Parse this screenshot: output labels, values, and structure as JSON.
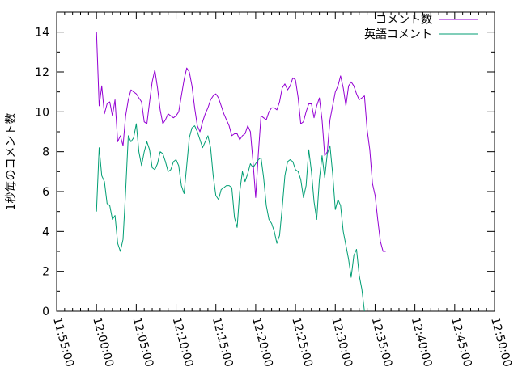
{
  "chart_data": {
    "type": "line",
    "title": "",
    "ylabel": "1秒毎のコメント数",
    "xlabel": "",
    "ylim": [
      0,
      15
    ],
    "yticks": [
      "0",
      "2",
      "4",
      "6",
      "8",
      "10",
      "12",
      "14"
    ],
    "xticks": [
      "11:55:00",
      "12:00:00",
      "12:05:00",
      "12:10:00",
      "12:15:00",
      "12:20:00",
      "12:25:00",
      "12:30:00",
      "12:35:00",
      "12:40:00",
      "12:45:00",
      "12:50:00"
    ],
    "xlim": [
      "11:55:00",
      "12:50:00"
    ],
    "legend_position": "top-right",
    "grid": false,
    "series": [
      {
        "name": "コメント数",
        "color": "#9400d3",
        "points": [
          [
            "12:00:00",
            14.0
          ],
          [
            "12:00:20",
            10.3
          ],
          [
            "12:00:40",
            11.3
          ],
          [
            "12:01:00",
            9.9
          ],
          [
            "12:01:20",
            10.4
          ],
          [
            "12:01:40",
            10.5
          ],
          [
            "12:02:00",
            9.8
          ],
          [
            "12:02:20",
            10.6
          ],
          [
            "12:02:40",
            8.5
          ],
          [
            "12:03:00",
            8.8
          ],
          [
            "12:03:20",
            8.3
          ],
          [
            "12:03:40",
            9.8
          ],
          [
            "12:04:00",
            10.6
          ],
          [
            "12:04:20",
            11.1
          ],
          [
            "12:04:40",
            11.0
          ],
          [
            "12:05:00",
            10.9
          ],
          [
            "12:05:20",
            10.7
          ],
          [
            "12:05:40",
            10.5
          ],
          [
            "12:06:00",
            9.5
          ],
          [
            "12:06:20",
            9.4
          ],
          [
            "12:06:40",
            10.5
          ],
          [
            "12:07:00",
            11.5
          ],
          [
            "12:07:20",
            12.1
          ],
          [
            "12:07:40",
            11.2
          ],
          [
            "12:08:00",
            10.1
          ],
          [
            "12:08:20",
            9.4
          ],
          [
            "12:08:40",
            9.6
          ],
          [
            "12:09:00",
            9.9
          ],
          [
            "12:09:20",
            9.8
          ],
          [
            "12:09:40",
            9.7
          ],
          [
            "12:10:00",
            9.8
          ],
          [
            "12:10:20",
            10.0
          ],
          [
            "12:10:40",
            10.8
          ],
          [
            "12:11:00",
            11.6
          ],
          [
            "12:11:20",
            12.2
          ],
          [
            "12:11:40",
            12.0
          ],
          [
            "12:12:00",
            11.3
          ],
          [
            "12:12:20",
            10.2
          ],
          [
            "12:12:40",
            9.3
          ],
          [
            "12:13:00",
            9.0
          ],
          [
            "12:13:20",
            9.5
          ],
          [
            "12:13:40",
            9.9
          ],
          [
            "12:14:00",
            10.2
          ],
          [
            "12:14:20",
            10.6
          ],
          [
            "12:14:40",
            10.8
          ],
          [
            "12:15:00",
            10.9
          ],
          [
            "12:15:20",
            10.7
          ],
          [
            "12:15:40",
            10.3
          ],
          [
            "12:16:00",
            9.9
          ],
          [
            "12:16:20",
            9.6
          ],
          [
            "12:16:40",
            9.3
          ],
          [
            "12:17:00",
            8.8
          ],
          [
            "12:17:20",
            8.9
          ],
          [
            "12:17:40",
            8.9
          ],
          [
            "12:18:00",
            8.6
          ],
          [
            "12:18:20",
            8.8
          ],
          [
            "12:18:40",
            8.9
          ],
          [
            "12:19:00",
            9.3
          ],
          [
            "12:19:20",
            9.0
          ],
          [
            "12:19:40",
            7.5
          ],
          [
            "12:20:00",
            5.7
          ],
          [
            "12:20:20",
            7.9
          ],
          [
            "12:20:40",
            9.8
          ],
          [
            "12:21:00",
            9.7
          ],
          [
            "12:21:20",
            9.6
          ],
          [
            "12:21:40",
            10.0
          ],
          [
            "12:22:00",
            10.2
          ],
          [
            "12:22:20",
            10.2
          ],
          [
            "12:22:40",
            10.1
          ],
          [
            "12:23:00",
            10.5
          ],
          [
            "12:23:20",
            11.2
          ],
          [
            "12:23:40",
            11.4
          ],
          [
            "12:24:00",
            11.1
          ],
          [
            "12:24:20",
            11.3
          ],
          [
            "12:24:40",
            11.7
          ],
          [
            "12:25:00",
            11.6
          ],
          [
            "12:25:20",
            10.7
          ],
          [
            "12:25:40",
            9.4
          ],
          [
            "12:26:00",
            9.5
          ],
          [
            "12:26:20",
            10.0
          ],
          [
            "12:26:40",
            10.4
          ],
          [
            "12:27:00",
            10.4
          ],
          [
            "12:27:20",
            9.7
          ],
          [
            "12:27:40",
            10.3
          ],
          [
            "12:28:00",
            10.7
          ],
          [
            "12:28:20",
            9.6
          ],
          [
            "12:28:40",
            7.8
          ],
          [
            "12:29:00",
            8.0
          ],
          [
            "12:29:20",
            9.6
          ],
          [
            "12:29:40",
            10.3
          ],
          [
            "12:30:00",
            11.0
          ],
          [
            "12:30:20",
            11.3
          ],
          [
            "12:30:40",
            11.8
          ],
          [
            "12:31:00",
            11.2
          ],
          [
            "12:31:20",
            10.3
          ],
          [
            "12:31:40",
            11.3
          ],
          [
            "12:32:00",
            11.5
          ],
          [
            "12:32:20",
            11.3
          ],
          [
            "12:32:40",
            10.9
          ],
          [
            "12:33:00",
            10.6
          ],
          [
            "12:33:20",
            10.7
          ],
          [
            "12:33:40",
            10.8
          ],
          [
            "12:34:00",
            9.1
          ],
          [
            "12:34:20",
            8.1
          ],
          [
            "12:34:40",
            6.4
          ],
          [
            "12:35:00",
            5.8
          ],
          [
            "12:35:20",
            4.6
          ],
          [
            "12:35:40",
            3.5
          ],
          [
            "12:36:00",
            3.0
          ],
          [
            "12:36:20",
            3.0
          ]
        ]
      },
      {
        "name": "英語コメント",
        "color": "#009e73",
        "points": [
          [
            "12:00:00",
            5.0
          ],
          [
            "12:00:20",
            8.2
          ],
          [
            "12:00:40",
            6.8
          ],
          [
            "12:01:00",
            6.5
          ],
          [
            "12:01:20",
            5.4
          ],
          [
            "12:01:40",
            5.3
          ],
          [
            "12:02:00",
            4.6
          ],
          [
            "12:02:20",
            4.8
          ],
          [
            "12:02:40",
            3.4
          ],
          [
            "12:03:00",
            3.0
          ],
          [
            "12:03:20",
            3.6
          ],
          [
            "12:03:40",
            6.0
          ],
          [
            "12:04:00",
            8.8
          ],
          [
            "12:04:20",
            8.5
          ],
          [
            "12:04:40",
            8.7
          ],
          [
            "12:05:00",
            9.4
          ],
          [
            "12:05:20",
            8.0
          ],
          [
            "12:05:40",
            7.3
          ],
          [
            "12:06:00",
            8.0
          ],
          [
            "12:06:20",
            8.5
          ],
          [
            "12:06:40",
            8.1
          ],
          [
            "12:07:00",
            7.2
          ],
          [
            "12:07:20",
            7.1
          ],
          [
            "12:07:40",
            7.4
          ],
          [
            "12:08:00",
            8.0
          ],
          [
            "12:08:20",
            7.9
          ],
          [
            "12:08:40",
            7.5
          ],
          [
            "12:09:00",
            7.0
          ],
          [
            "12:09:20",
            7.1
          ],
          [
            "12:09:40",
            7.5
          ],
          [
            "12:10:00",
            7.6
          ],
          [
            "12:10:20",
            7.3
          ],
          [
            "12:10:40",
            6.3
          ],
          [
            "12:11:00",
            5.9
          ],
          [
            "12:11:20",
            7.3
          ],
          [
            "12:11:40",
            8.7
          ],
          [
            "12:12:00",
            9.2
          ],
          [
            "12:12:20",
            9.3
          ],
          [
            "12:12:40",
            9.0
          ],
          [
            "12:13:00",
            8.6
          ],
          [
            "12:13:20",
            8.2
          ],
          [
            "12:13:40",
            8.5
          ],
          [
            "12:14:00",
            8.8
          ],
          [
            "12:14:20",
            8.2
          ],
          [
            "12:14:40",
            6.8
          ],
          [
            "12:15:00",
            5.8
          ],
          [
            "12:15:20",
            5.6
          ],
          [
            "12:15:40",
            6.1
          ],
          [
            "12:16:00",
            6.2
          ],
          [
            "12:16:20",
            6.3
          ],
          [
            "12:16:40",
            6.3
          ],
          [
            "12:17:00",
            6.2
          ],
          [
            "12:17:20",
            4.7
          ],
          [
            "12:17:40",
            4.2
          ],
          [
            "12:18:00",
            6.0
          ],
          [
            "12:18:20",
            7.0
          ],
          [
            "12:18:40",
            6.5
          ],
          [
            "12:19:00",
            6.9
          ],
          [
            "12:19:20",
            7.4
          ],
          [
            "12:19:40",
            7.2
          ],
          [
            "12:20:00",
            7.4
          ],
          [
            "12:20:20",
            7.6
          ],
          [
            "12:20:40",
            7.7
          ],
          [
            "12:21:00",
            6.7
          ],
          [
            "12:21:20",
            5.3
          ],
          [
            "12:21:40",
            4.6
          ],
          [
            "12:22:00",
            4.4
          ],
          [
            "12:22:20",
            4.0
          ],
          [
            "12:22:40",
            3.4
          ],
          [
            "12:23:00",
            3.8
          ],
          [
            "12:23:20",
            5.2
          ],
          [
            "12:23:40",
            6.8
          ],
          [
            "12:24:00",
            7.5
          ],
          [
            "12:24:20",
            7.6
          ],
          [
            "12:24:40",
            7.5
          ],
          [
            "12:25:00",
            7.1
          ],
          [
            "12:25:20",
            7.0
          ],
          [
            "12:25:40",
            6.6
          ],
          [
            "12:26:00",
            5.7
          ],
          [
            "12:26:20",
            6.3
          ],
          [
            "12:26:40",
            8.1
          ],
          [
            "12:27:00",
            7.0
          ],
          [
            "12:27:20",
            5.5
          ],
          [
            "12:27:40",
            4.6
          ],
          [
            "12:28:00",
            6.6
          ],
          [
            "12:28:20",
            7.8
          ],
          [
            "12:28:40",
            6.7
          ],
          [
            "12:29:00",
            7.9
          ],
          [
            "12:29:20",
            8.3
          ],
          [
            "12:29:40",
            6.9
          ],
          [
            "12:30:00",
            5.1
          ],
          [
            "12:30:20",
            5.6
          ],
          [
            "12:30:40",
            5.3
          ],
          [
            "12:31:00",
            4.0
          ],
          [
            "12:31:20",
            3.3
          ],
          [
            "12:31:40",
            2.6
          ],
          [
            "12:32:00",
            1.7
          ],
          [
            "12:32:20",
            2.8
          ],
          [
            "12:32:40",
            3.1
          ],
          [
            "12:33:00",
            1.8
          ],
          [
            "12:33:20",
            1.1
          ],
          [
            "12:33:40",
            0.0
          ]
        ]
      }
    ]
  }
}
